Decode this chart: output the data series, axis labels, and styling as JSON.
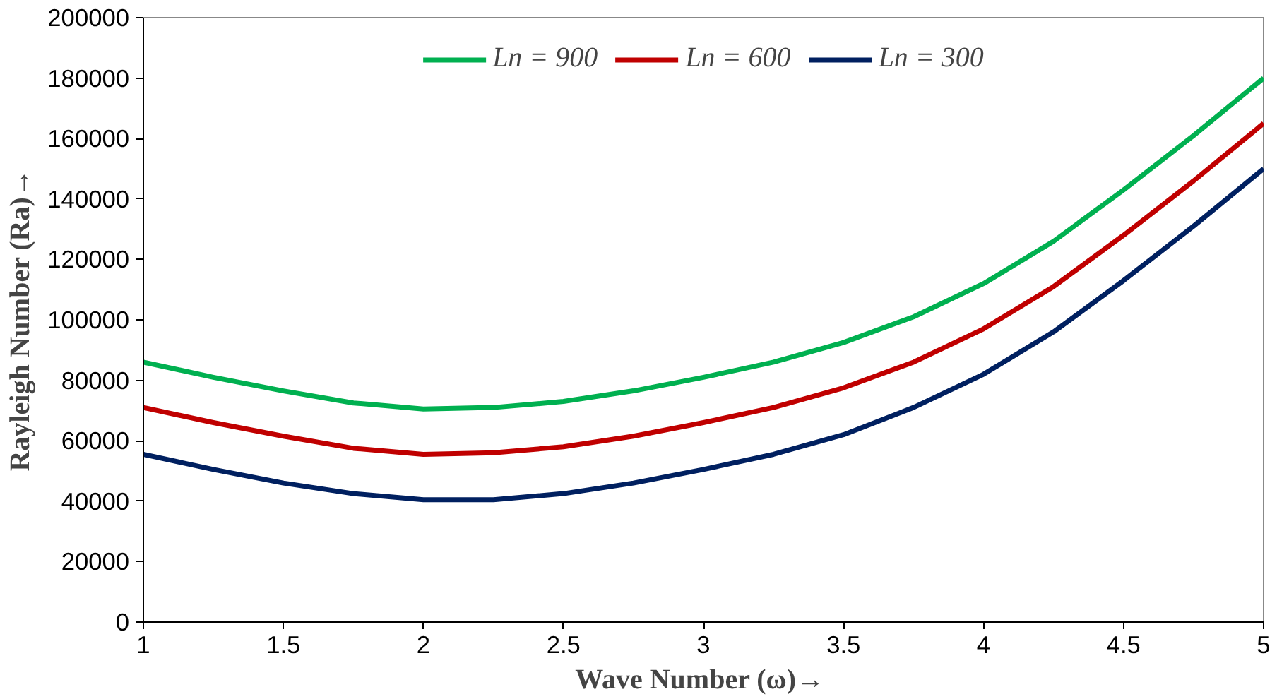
{
  "chart_data": {
    "type": "line",
    "xlabel": "Wave Number  (ω)→",
    "ylabel": "Rayleigh Number (Ra)→",
    "x": [
      1,
      1.25,
      1.5,
      1.75,
      2,
      2.25,
      2.5,
      2.75,
      3,
      3.25,
      3.5,
      3.75,
      4,
      4.25,
      4.5,
      4.75,
      5
    ],
    "series": [
      {
        "name": "Ln = 900",
        "color": "#00b050",
        "values": [
          86000,
          81000,
          76500,
          72500,
          70500,
          71000,
          73000,
          76500,
          81000,
          86000,
          92500,
          101000,
          112000,
          126000,
          143000,
          161000,
          180000
        ]
      },
      {
        "name": "Ln = 600",
        "color": "#c00000",
        "values": [
          71000,
          66000,
          61500,
          57500,
          55500,
          56000,
          58000,
          61500,
          66000,
          71000,
          77500,
          86000,
          97000,
          111000,
          128000,
          146000,
          165000
        ]
      },
      {
        "name": "Ln = 300",
        "color": "#002060",
        "values": [
          55500,
          50500,
          46000,
          42500,
          40500,
          40500,
          42500,
          46000,
          50500,
          55500,
          62000,
          71000,
          82000,
          96000,
          113000,
          131000,
          150000
        ]
      }
    ],
    "xlim": [
      1,
      5
    ],
    "ylim": [
      0,
      200000
    ],
    "xticks": [
      1,
      1.5,
      2,
      2.5,
      3,
      3.5,
      4,
      4.5,
      5
    ],
    "yticks": [
      0,
      20000,
      40000,
      60000,
      80000,
      100000,
      120000,
      140000,
      160000,
      180000,
      200000
    ],
    "grid": false,
    "legend": "top",
    "marker": "none",
    "line_style": "solid"
  }
}
